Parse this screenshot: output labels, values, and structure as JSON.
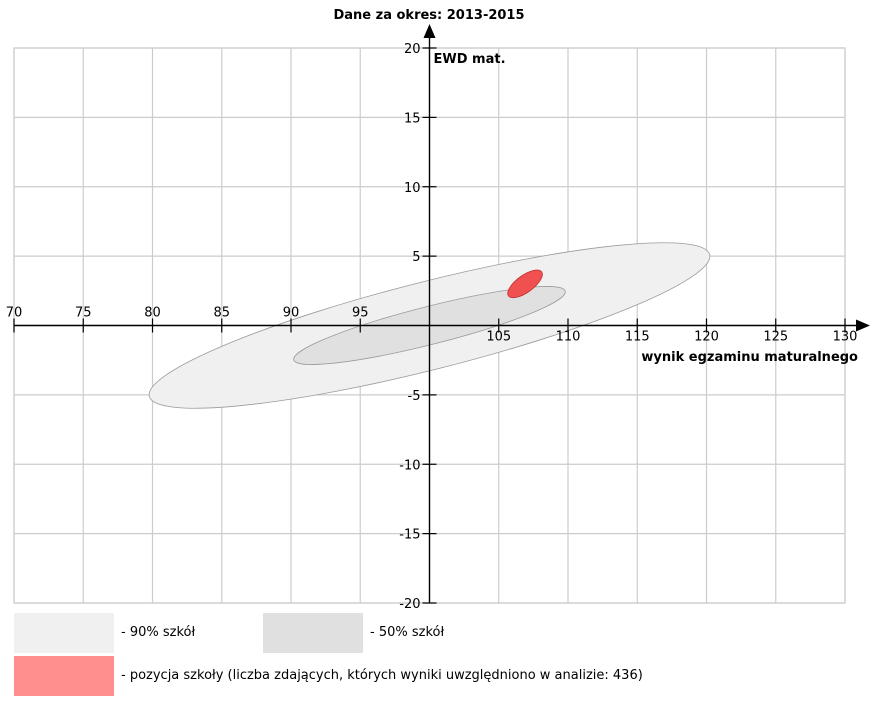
{
  "chart_data": {
    "type": "scatter",
    "title": "Dane za okres: 2013-2015",
    "xlabel": "wynik egzaminu maturalnego",
    "ylabel": "EWD mat.",
    "xlim": [
      70,
      130
    ],
    "ylim": [
      -20,
      20
    ],
    "x_ticks": [
      70,
      75,
      80,
      85,
      90,
      95,
      105,
      110,
      115,
      120,
      125,
      130
    ],
    "y_ticks": [
      -20,
      -15,
      -10,
      -5,
      5,
      10,
      15,
      20
    ],
    "grid": true,
    "series": [
      {
        "name": "- 90% szkół",
        "shape": "ellipse",
        "center": [
          100,
          0
        ],
        "x_extent": [
          80.5,
          119.5
        ],
        "y_extent": [
          -7.8,
          7.8
        ],
        "color": "#f0f0f0"
      },
      {
        "name": "- 50% szkół",
        "shape": "ellipse",
        "center": [
          100,
          0
        ],
        "x_extent": [
          90,
          110
        ],
        "y_extent": [
          -4,
          4
        ],
        "color": "#e0e0e0"
      },
      {
        "name": "- pozycja szkoły (liczba zdających, których wyniki uwzględniono w analizie: 436)",
        "shape": "ellipse",
        "center": [
          106.9,
          3.0
        ],
        "x_extent": [
          105.6,
          108.2
        ],
        "y_extent": [
          2.0,
          4.0
        ],
        "color": "#f05050"
      }
    ]
  },
  "legend": {
    "items": [
      {
        "label": "- 90% szkół",
        "color": "#f0f0f0"
      },
      {
        "label": "- 50% szkół",
        "color": "#e0e0e0"
      },
      {
        "label": "- pozycja szkoły (liczba zdających, których wyniki uwzględniono w analizie: 436)",
        "color": "#ff8e8e"
      }
    ]
  }
}
